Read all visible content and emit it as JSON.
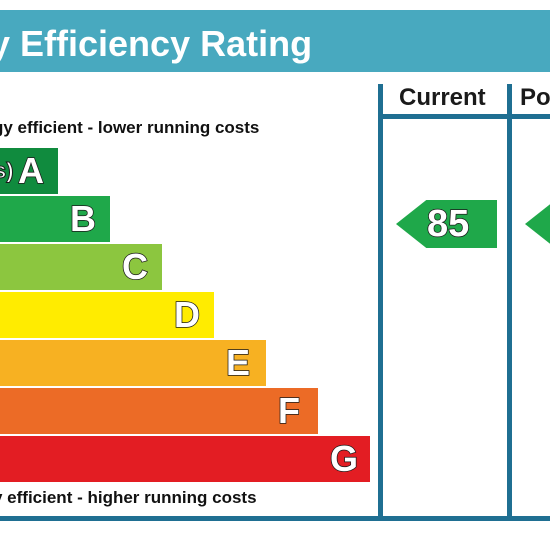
{
  "header": {
    "title": "rgy Efficiency Rating"
  },
  "columns": {
    "current_label": "Current",
    "potential_label": "Po"
  },
  "captions": {
    "top": "gy efficient - lower running costs",
    "bottom": "y efficient - higher running costs"
  },
  "chart_data": {
    "type": "bar",
    "title": "rgy Efficiency Rating",
    "categories": [
      "A",
      "B",
      "C",
      "D",
      "E",
      "F",
      "G"
    ],
    "band_colors": [
      "#108b3e",
      "#1fa84a",
      "#8cc63f",
      "#ffec00",
      "#f7b122",
      "#ec6b26",
      "#e31d23"
    ],
    "band_a_fragment": "s)",
    "current": {
      "label": "Current",
      "value": "85",
      "band": "B",
      "color": "#1fa84a"
    },
    "potential": {
      "label": "Po",
      "value": "",
      "band": "B",
      "color": "#1fa84a"
    }
  }
}
